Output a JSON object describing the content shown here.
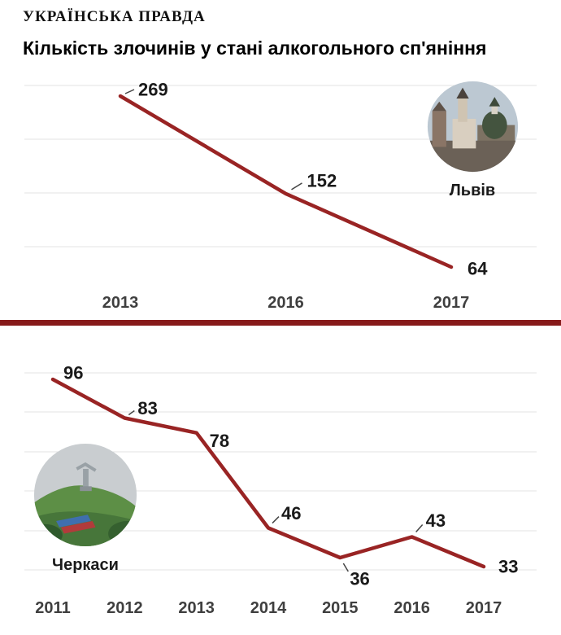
{
  "masthead": "УКРАЇНСЬКА ПРАВДА",
  "title": "Кількість злочинів у стані алкогольного сп'яніння",
  "colors": {
    "line": "#992424",
    "divider": "#871a1a",
    "grid": "#e3e3e3",
    "label": "#1a1a1a",
    "axis": "#3f3f3f"
  },
  "chart_data": [
    {
      "type": "line",
      "city": "Львів",
      "x": [
        "2013",
        "2016",
        "2017"
      ],
      "values": [
        269,
        152,
        64
      ],
      "title": "",
      "xlabel": "",
      "ylabel": "",
      "grid": true,
      "legend": "none"
    },
    {
      "type": "line",
      "city": "Черкаси",
      "x": [
        "2011",
        "2012",
        "2013",
        "2014",
        "2015",
        "2016",
        "2017"
      ],
      "values": [
        96,
        83,
        78,
        46,
        36,
        43,
        33
      ],
      "title": "",
      "xlabel": "",
      "ylabel": "",
      "grid": true,
      "legend": "none"
    }
  ]
}
